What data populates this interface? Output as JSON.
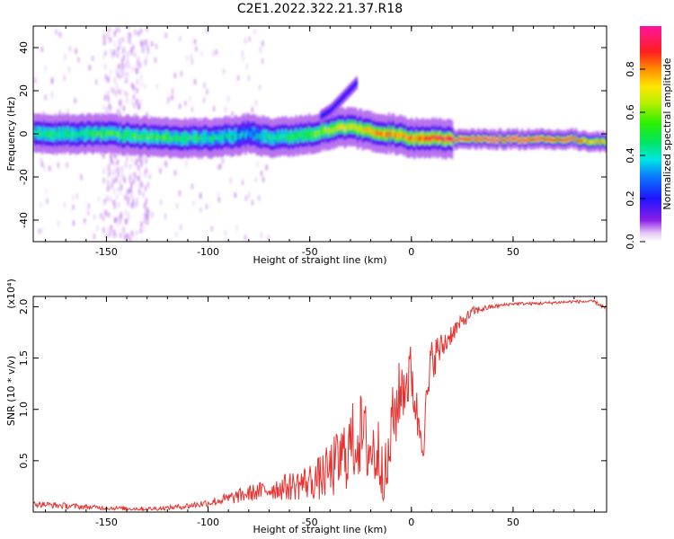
{
  "figure": {
    "title": "C2E1.2022.322.21.37.R18"
  },
  "chart_data": [
    {
      "type": "heatmap",
      "title": "C2E1.2022.322.21.37.R18",
      "xlabel": "Height of straight line (km)",
      "ylabel": "Frequency (Hz)",
      "xlim": [
        -186,
        96
      ],
      "ylim": [
        -50,
        50
      ],
      "x_ticks": [
        -150,
        -100,
        -50,
        0,
        50
      ],
      "x_tick_labels": [
        "-150",
        "-100",
        "-50",
        "0",
        "50"
      ],
      "y_ticks": [
        -40,
        -20,
        0,
        20,
        40
      ],
      "y_tick_labels": [
        "-40",
        "-20",
        "0",
        "20",
        "40"
      ],
      "grid": false,
      "colorbar": {
        "label": "Normalized spectral amplitude",
        "range": [
          0,
          1
        ],
        "ticks": [
          0,
          0.2,
          0.4,
          0.6,
          0.8
        ],
        "tick_labels": [
          "0.0",
          "0.2",
          "0.4",
          "0.6",
          "0.8"
        ],
        "colormap": "rainbow (white→purple→blue→cyan→green→yellow→orange→red→magenta)"
      },
      "ridge": {
        "description": "dominant signal frequency vs height",
        "x": [
          -186,
          -150,
          -120,
          -100,
          -80,
          -70,
          -60,
          -50,
          -40,
          -35,
          -30,
          -20,
          -10,
          -5,
          0,
          5,
          10,
          20,
          40,
          60,
          80,
          85,
          96
        ],
        "frequency": [
          0,
          0,
          -2,
          -2,
          0,
          -2,
          -1,
          0,
          2,
          3,
          3,
          1,
          0,
          -1,
          -2,
          -2,
          -2,
          -2.5,
          -2.5,
          -2.5,
          -2.5,
          -3.5,
          -3.5
        ],
        "peak_amplitude": [
          0.45,
          0.5,
          0.5,
          0.45,
          0.35,
          0.45,
          0.5,
          0.55,
          0.6,
          0.65,
          0.7,
          0.75,
          0.8,
          0.8,
          0.85,
          0.85,
          0.85,
          0.9,
          0.95,
          0.95,
          0.95,
          0.8,
          0.7
        ]
      },
      "secondary_branch": {
        "description": "rising weak feature near -40 to -27 km",
        "x": [
          -45,
          -40,
          -35,
          -30,
          -27
        ],
        "frequency": [
          8,
          11,
          16,
          21,
          24
        ]
      }
    },
    {
      "type": "line",
      "xlabel": "Height of straight line (km)",
      "ylabel": "SNR (10 * v/v)",
      "y_multiplier": "(x10⁴)",
      "xlim": [
        -186,
        96
      ],
      "ylim": [
        0,
        2.1
      ],
      "x_ticks": [
        -150,
        -100,
        -50,
        0,
        50
      ],
      "x_tick_labels": [
        "-150",
        "-100",
        "-50",
        "0",
        "50"
      ],
      "y_ticks": [
        0.5,
        1.0,
        1.5,
        2.0
      ],
      "y_tick_labels": [
        "0.5",
        "1.0",
        "1.5",
        "2.0"
      ],
      "grid": false,
      "series": [
        {
          "color": "#e8312e",
          "x": [
            -186,
            -170,
            -150,
            -130,
            -120,
            -110,
            -100,
            -90,
            -80,
            -70,
            -60,
            -50,
            -45,
            -40,
            -35,
            -30,
            -25,
            -20,
            -15,
            -12,
            -10,
            -5,
            0,
            3,
            6,
            10,
            15,
            20,
            25,
            30,
            35,
            40,
            50,
            60,
            70,
            80,
            90,
            96
          ],
          "values": [
            0.08,
            0.06,
            0.04,
            0.03,
            0.04,
            0.06,
            0.09,
            0.13,
            0.18,
            0.22,
            0.25,
            0.3,
            0.33,
            0.4,
            0.5,
            0.65,
            0.75,
            0.6,
            0.55,
            0.3,
            0.8,
            1.2,
            1.35,
            0.9,
            0.75,
            1.5,
            1.6,
            1.75,
            1.85,
            1.95,
            1.98,
            2.0,
            2.03,
            2.03,
            2.04,
            2.05,
            2.05,
            1.98
          ],
          "noise_band": [
            0.03,
            0.03,
            0.02,
            0.02,
            0.02,
            0.03,
            0.04,
            0.06,
            0.08,
            0.1,
            0.14,
            0.18,
            0.22,
            0.28,
            0.35,
            0.4,
            0.42,
            0.4,
            0.38,
            0.3,
            0.38,
            0.35,
            0.3,
            0.25,
            0.25,
            0.22,
            0.15,
            0.1,
            0.07,
            0.05,
            0.03,
            0.02,
            0.015,
            0.015,
            0.015,
            0.015,
            0.015,
            0.02
          ]
        }
      ]
    }
  ]
}
